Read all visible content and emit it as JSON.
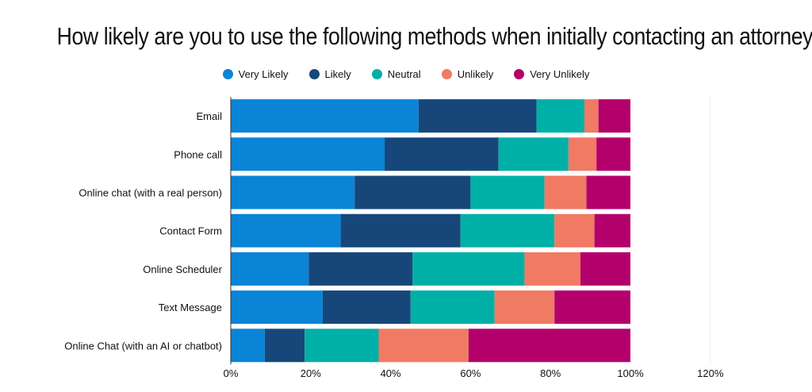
{
  "chart_data": {
    "type": "bar",
    "orientation": "horizontal",
    "stacked": true,
    "title": "How likely are you to use the following methods when initially contacting an attorney?",
    "categories": [
      "Email",
      "Phone call",
      "Online chat (with a real person)",
      "Contact Form",
      "Online Scheduler",
      "Text Message",
      "Online Chat (with an AI or chatbot)"
    ],
    "series": [
      {
        "name": "Very Likely",
        "color": "#0a84d6",
        "values": [
          47,
          38.5,
          31,
          27.5,
          19.5,
          23,
          8.5
        ]
      },
      {
        "name": "Likely",
        "color": "#17477a",
        "values": [
          29.5,
          28.5,
          29,
          30,
          26,
          22,
          10
        ]
      },
      {
        "name": "Neutral",
        "color": "#00b0a6",
        "values": [
          12,
          17.5,
          18.5,
          23.5,
          28,
          21,
          18.5
        ]
      },
      {
        "name": "Unlikely",
        "color": "#f07a63",
        "values": [
          3.5,
          7,
          10.5,
          10,
          14,
          15,
          22.5
        ]
      },
      {
        "name": "Very Unlikely",
        "color": "#b3006b",
        "values": [
          8,
          8.5,
          11,
          9,
          12.5,
          19,
          40.5
        ]
      }
    ],
    "x_ticks": [
      "0%",
      "20%",
      "40%",
      "60%",
      "80%",
      "100%",
      "120%"
    ],
    "xlim": [
      0,
      120
    ],
    "xlabel": "",
    "ylabel": "",
    "legend_position": "top"
  }
}
